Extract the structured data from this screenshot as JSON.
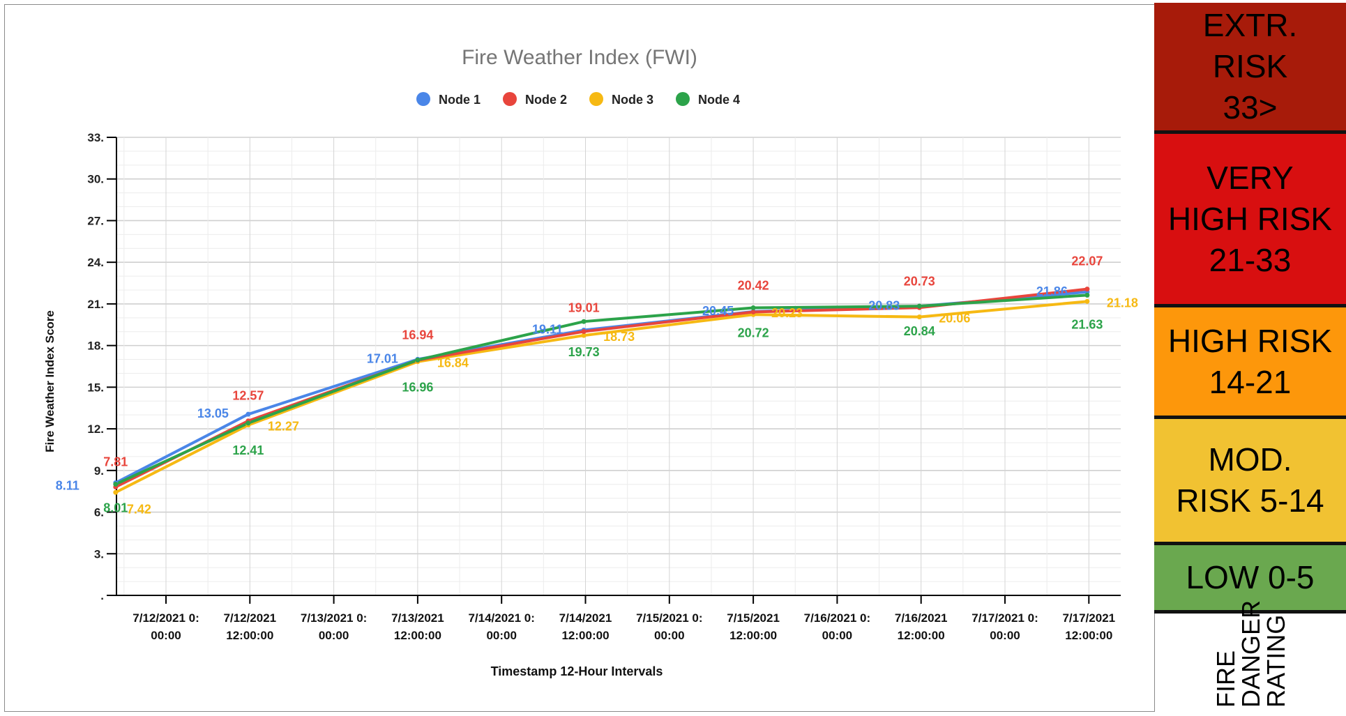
{
  "chart_data": {
    "type": "line",
    "title": "Fire Weather Index (FWI)",
    "xlabel": "Timestamp 12-Hour Intervals",
    "ylabel": "Fire Weather Index Score",
    "ylim": [
      0,
      33
    ],
    "y_ticks": [
      "33.",
      "30.",
      "27.",
      "24.",
      "21.",
      "18.",
      "15.",
      "12.",
      "9.",
      "6.",
      "3.",
      "."
    ],
    "y_tick_values": [
      33,
      30,
      27,
      24,
      21,
      18,
      15,
      12,
      9,
      6,
      3,
      0
    ],
    "categories": [
      "7/12/2021 0:\n00:00",
      "7/12/2021\n12:00:00",
      "7/13/2021 0:\n00:00",
      "7/13/2021\n12:00:00",
      "7/14/2021 0:\n00:00",
      "7/14/2021\n12:00:00",
      "7/15/2021 0:\n00:00",
      "7/15/2021\n12:00:00",
      "7/16/2021 0:\n00:00",
      "7/16/2021\n12:00:00",
      "7/17/2021 0:\n00:00",
      "7/17/2021\n12:00:00"
    ],
    "grid": true,
    "legend_position": "top-center",
    "series": [
      {
        "name": "Node 1",
        "color": "#4a86e8",
        "x": [
          -0.6,
          0.98,
          3.0,
          4.98,
          7.0,
          8.98,
          10.98
        ],
        "values": [
          8.11,
          13.05,
          17.01,
          19.11,
          20.45,
          20.83,
          21.86
        ],
        "labels": [
          "8.11",
          "13.05",
          "17.01",
          "19.11",
          "20.45",
          "20.83",
          "21.86"
        ]
      },
      {
        "name": "Node 2",
        "color": "#e8453c",
        "x": [
          -0.6,
          0.98,
          3.0,
          4.98,
          7.0,
          8.98,
          10.98
        ],
        "values": [
          7.81,
          12.57,
          16.94,
          19.01,
          20.42,
          20.73,
          22.07
        ],
        "labels": [
          "7.81",
          "12.57",
          "16.94",
          "19.01",
          "20.42",
          "20.73",
          "22.07"
        ]
      },
      {
        "name": "Node 3",
        "color": "#f6b913",
        "x": [
          -0.6,
          0.98,
          3.0,
          4.98,
          7.0,
          8.98,
          10.98
        ],
        "values": [
          7.42,
          12.27,
          16.84,
          18.73,
          20.23,
          20.06,
          21.18
        ],
        "labels": [
          "7.42",
          "12.27",
          "16.84",
          "18.73",
          "20.23",
          "20.06",
          "21.18"
        ]
      },
      {
        "name": "Node 4",
        "color": "#2ca34a",
        "x": [
          -0.6,
          0.98,
          3.0,
          4.98,
          7.0,
          8.98,
          10.98
        ],
        "values": [
          8.01,
          12.41,
          16.96,
          19.73,
          20.72,
          20.84,
          21.63
        ],
        "labels": [
          "8.01",
          "12.41",
          "16.96",
          "19.73",
          "20.72",
          "20.84",
          "21.63"
        ]
      }
    ]
  },
  "danger_scale": {
    "bands": [
      {
        "label": "EXTR.\nRISK\n33>",
        "color": "#a71b0a"
      },
      {
        "label": "VERY\nHIGH RISK\n21-33",
        "color": "#d80f10"
      },
      {
        "label": "HIGH RISK\n14-21",
        "color": "#fd970b"
      },
      {
        "label": "MOD.\nRISK 5-14",
        "color": "#f1c232"
      },
      {
        "label": "LOW 0-5",
        "color": "#6aa84f"
      }
    ],
    "caption": [
      "FIRE",
      "DANGER",
      "RATING"
    ]
  }
}
